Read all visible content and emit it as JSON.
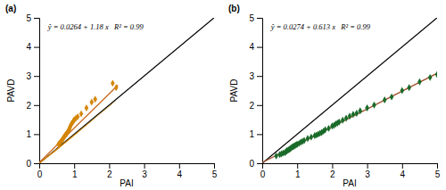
{
  "chart_data": [
    {
      "type": "scatter",
      "title": "(a)",
      "annotations": [
        "ŷ = 0.0264 + 1.18 x   R² = 0.99"
      ],
      "x_label": "PAI",
      "y_label": "PAVD",
      "xlim": [
        0,
        5
      ],
      "ylim": [
        0,
        5
      ],
      "xticks": [
        0,
        1,
        2,
        3,
        4,
        5
      ],
      "yticks": [
        0,
        1,
        2,
        3,
        4,
        5
      ],
      "series": [
        {
          "type": "line",
          "color": "#000000",
          "x": [
            0,
            5
          ],
          "values": [
            0,
            5
          ]
        },
        {
          "type": "line",
          "color": "#D4860A",
          "x": [
            0.0,
            0.5
          ],
          "values": [
            0.0,
            0.45
          ]
        },
        {
          "type": "line",
          "color": "#D4860A",
          "x": [
            0.0,
            0.5
          ],
          "values": [
            0.0,
            0.5
          ]
        },
        {
          "type": "line",
          "color": "#D4860A",
          "x": [
            0.0,
            0.6
          ],
          "values": [
            0.0,
            0.55
          ]
        },
        {
          "type": "line",
          "color": "#D4860A",
          "x": [
            0.0,
            0.7
          ],
          "values": [
            0.0,
            0.65
          ]
        },
        {
          "type": "line",
          "color": "#D4860A",
          "x": [
            0.0,
            0.8
          ],
          "values": [
            0.0,
            0.75
          ]
        },
        {
          "type": "line",
          "color": "#D4860A",
          "x": [
            0.0,
            0.9
          ],
          "values": [
            0.0,
            0.85
          ]
        },
        {
          "type": "line",
          "color": "#D4860A",
          "x": [
            0.0,
            1.0
          ],
          "values": [
            0.0,
            0.95
          ]
        },
        {
          "type": "line",
          "color": "#D4860A",
          "x": [
            0.0,
            1.1
          ],
          "values": [
            0.0,
            1.05
          ]
        },
        {
          "type": "line",
          "color": "#D4860A",
          "x": [
            0.0,
            1.2
          ],
          "values": [
            0.0,
            1.15
          ]
        },
        {
          "type": "line",
          "color": "#D4860A",
          "x": [
            0.0,
            1.35
          ],
          "values": [
            0.0,
            1.3
          ]
        },
        {
          "type": "line",
          "color": "#D4860A",
          "x": [
            0.0,
            1.5
          ],
          "values": [
            0.0,
            1.45
          ]
        },
        {
          "type": "line",
          "color": "#D4860A",
          "x": [
            0.0,
            1.6
          ],
          "values": [
            0.0,
            1.55
          ]
        },
        {
          "type": "line",
          "color": "#D4860A",
          "x": [
            0.0,
            2.1
          ],
          "values": [
            0.0,
            2.05
          ]
        },
        {
          "type": "line",
          "color": "#D4860A",
          "x": [
            0.0,
            2.2
          ],
          "values": [
            0.0,
            2.15
          ]
        },
        {
          "type": "line",
          "color": "#C8651B",
          "x": [
            0,
            2.25
          ],
          "values": [
            0.0264,
            2.6814
          ]
        },
        {
          "type": "scatter",
          "color": "#D4860A",
          "marker": "diamond",
          "x": [
            0.55,
            0.58,
            0.6,
            0.62,
            0.65,
            0.67,
            0.68,
            0.7,
            0.72,
            0.74,
            0.75,
            0.78,
            0.8,
            0.82,
            0.85,
            0.87,
            0.88,
            0.9,
            0.92,
            0.95,
            0.98,
            1.0,
            1.05,
            1.1,
            1.2,
            1.35,
            1.5,
            1.6,
            2.1,
            2.2
          ],
          "values": [
            0.65,
            0.68,
            0.72,
            0.75,
            0.78,
            0.82,
            0.85,
            0.88,
            0.92,
            0.95,
            0.98,
            1.0,
            1.05,
            1.1,
            1.15,
            1.2,
            1.25,
            1.3,
            1.35,
            1.4,
            1.45,
            1.5,
            1.55,
            1.6,
            1.7,
            1.9,
            2.1,
            2.2,
            2.75,
            2.6
          ]
        }
      ]
    },
    {
      "type": "scatter",
      "title": "(b)",
      "annotations": [
        "ŷ = 0.0274 + 0.613 x   R² = 0.99"
      ],
      "x_label": "PAI",
      "y_label": "PAVD",
      "xlim": [
        0,
        5
      ],
      "ylim": [
        0,
        5
      ],
      "xticks": [
        0,
        1,
        2,
        3,
        4,
        5
      ],
      "yticks": [
        0,
        1,
        2,
        3,
        4,
        5
      ],
      "series": [
        {
          "type": "line",
          "color": "#000000",
          "x": [
            0,
            5
          ],
          "values": [
            0,
            5
          ]
        },
        {
          "type": "line",
          "color": "#A0522D",
          "x": [
            0,
            5.0
          ],
          "values": [
            0.0274,
            3.0924
          ]
        },
        {
          "type": "scatter",
          "color": "#1A6B2A",
          "marker": "diamond",
          "x": [
            0.4,
            0.5,
            0.55,
            0.6,
            0.65,
            0.68,
            0.7,
            0.72,
            0.75,
            0.78,
            0.8,
            0.82,
            0.85,
            0.88,
            0.9,
            0.92,
            0.95,
            0.98,
            1.0,
            1.05,
            1.1,
            1.15,
            1.2,
            1.3,
            1.4,
            1.5,
            1.55,
            1.6,
            1.65,
            1.7,
            1.75,
            1.8,
            1.9,
            2.0,
            2.05,
            2.1,
            2.15,
            2.2,
            2.3,
            2.4,
            2.5,
            2.6,
            2.7,
            2.8,
            3.0,
            3.2,
            3.5,
            3.7,
            4.0,
            4.2,
            4.5,
            4.8,
            5.0
          ],
          "values": [
            0.25,
            0.3,
            0.32,
            0.35,
            0.37,
            0.4,
            0.42,
            0.44,
            0.46,
            0.48,
            0.5,
            0.52,
            0.55,
            0.57,
            0.58,
            0.6,
            0.62,
            0.64,
            0.65,
            0.68,
            0.72,
            0.75,
            0.78,
            0.85,
            0.9,
            0.95,
            0.97,
            1.0,
            1.03,
            1.06,
            1.1,
            1.15,
            1.2,
            1.28,
            1.3,
            1.35,
            1.38,
            1.42,
            1.48,
            1.55,
            1.62,
            1.68,
            1.72,
            1.8,
            1.9,
            2.0,
            2.18,
            2.28,
            2.5,
            2.6,
            2.8,
            2.95,
            3.05
          ]
        }
      ]
    }
  ]
}
